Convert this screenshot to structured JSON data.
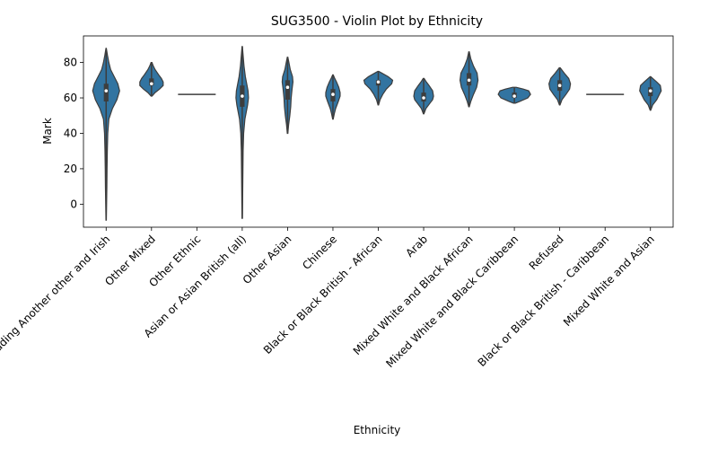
{
  "chart_data": {
    "type": "violin",
    "title": "SUG3500 - Violin Plot by Ethnicity",
    "xlabel": "Ethnicity",
    "ylabel": "Mark",
    "ylim": [
      -13,
      95
    ],
    "yticks": [
      0,
      20,
      40,
      60,
      80
    ],
    "grid": false,
    "color": "#3274a1",
    "categories": [
      "White including Another other and Irish",
      "Other Mixed",
      "Other Ethnic",
      "Asian or Asian British (all)",
      "Other Asian",
      "Chinese",
      "Black or Black British - African",
      "Arab",
      "Mixed White and Black African",
      "Mixed White and Black Caribbean",
      "Refused",
      "Black or Black British - Caribbean",
      "Mixed White and Asian"
    ],
    "violins": [
      {
        "min": -9,
        "max": 88,
        "q1": 58,
        "median": 64,
        "q3": 68,
        "profile": [
          [
            -9,
            0.2
          ],
          [
            0,
            0.5
          ],
          [
            10,
            0.8
          ],
          [
            20,
            1.0
          ],
          [
            30,
            1.3
          ],
          [
            40,
            1.8
          ],
          [
            48,
            3
          ],
          [
            54,
            7
          ],
          [
            59,
            12
          ],
          [
            64,
            15
          ],
          [
            68,
            13
          ],
          [
            72,
            9
          ],
          [
            76,
            5
          ],
          [
            80,
            3
          ],
          [
            84,
            1.5
          ],
          [
            88,
            0.2
          ]
        ]
      },
      {
        "min": 61,
        "max": 80,
        "q1": 67,
        "median": 68,
        "q3": 71,
        "profile": [
          [
            61,
            0.5
          ],
          [
            63,
            4
          ],
          [
            65,
            9
          ],
          [
            67,
            13
          ],
          [
            69,
            13
          ],
          [
            71,
            11
          ],
          [
            73,
            8
          ],
          [
            76,
            4
          ],
          [
            78,
            2
          ],
          [
            80,
            0.5
          ]
        ]
      },
      {
        "min": 62,
        "max": 62,
        "q1": 62,
        "median": 62,
        "q3": 62,
        "profile": [
          [
            62,
            21
          ]
        ]
      },
      {
        "min": -8,
        "max": 89,
        "q1": 55,
        "median": 61,
        "q3": 67,
        "profile": [
          [
            -8,
            0.2
          ],
          [
            0,
            0.4
          ],
          [
            10,
            0.6
          ],
          [
            20,
            0.8
          ],
          [
            30,
            1.0
          ],
          [
            40,
            1.6
          ],
          [
            48,
            3
          ],
          [
            52,
            4.5
          ],
          [
            56,
            6
          ],
          [
            60,
            7
          ],
          [
            64,
            6.5
          ],
          [
            68,
            5
          ],
          [
            72,
            3.5
          ],
          [
            78,
            2
          ],
          [
            84,
            1
          ],
          [
            89,
            0.2
          ]
        ]
      },
      {
        "min": 40,
        "max": 83,
        "q1": 59,
        "median": 66,
        "q3": 70,
        "profile": [
          [
            40,
            0.3
          ],
          [
            45,
            1.2
          ],
          [
            50,
            2.5
          ],
          [
            55,
            3.5
          ],
          [
            60,
            4
          ],
          [
            65,
            5
          ],
          [
            69,
            6
          ],
          [
            72,
            5.5
          ],
          [
            76,
            3
          ],
          [
            80,
            1.5
          ],
          [
            83,
            0.3
          ]
        ]
      },
      {
        "min": 48,
        "max": 73,
        "q1": 58,
        "median": 62,
        "q3": 65,
        "profile": [
          [
            48,
            0.3
          ],
          [
            51,
            1.5
          ],
          [
            54,
            3
          ],
          [
            58,
            6
          ],
          [
            61,
            8
          ],
          [
            63,
            8
          ],
          [
            66,
            6.5
          ],
          [
            69,
            4
          ],
          [
            71,
            2
          ],
          [
            73,
            0.3
          ]
        ]
      },
      {
        "min": 56,
        "max": 75,
        "q1": 67,
        "median": 69,
        "q3": 70,
        "profile": [
          [
            56,
            0.3
          ],
          [
            59,
            2
          ],
          [
            62,
            5
          ],
          [
            65,
            9
          ],
          [
            68,
            15
          ],
          [
            70,
            16
          ],
          [
            72,
            11
          ],
          [
            74,
            4
          ],
          [
            75,
            0.5
          ]
        ]
      },
      {
        "min": 51,
        "max": 71,
        "q1": 58,
        "median": 60,
        "q3": 63,
        "profile": [
          [
            51,
            0.3
          ],
          [
            54,
            2.5
          ],
          [
            57,
            7
          ],
          [
            59,
            10
          ],
          [
            61,
            11
          ],
          [
            64,
            10
          ],
          [
            67,
            6
          ],
          [
            69,
            3
          ],
          [
            71,
            0.5
          ]
        ]
      },
      {
        "min": 55,
        "max": 86,
        "q1": 67,
        "median": 70,
        "q3": 74,
        "profile": [
          [
            55,
            0.3
          ],
          [
            58,
            2
          ],
          [
            62,
            5
          ],
          [
            66,
            8.5
          ],
          [
            70,
            10
          ],
          [
            74,
            9
          ],
          [
            78,
            5
          ],
          [
            82,
            2
          ],
          [
            86,
            0.3
          ]
        ]
      },
      {
        "min": 57,
        "max": 66,
        "q1": 60,
        "median": 61,
        "q3": 63,
        "profile": [
          [
            57,
            1
          ],
          [
            58,
            6
          ],
          [
            60,
            15
          ],
          [
            62,
            18
          ],
          [
            64,
            16
          ],
          [
            65,
            10
          ],
          [
            66,
            2
          ]
        ]
      },
      {
        "min": 56,
        "max": 77,
        "q1": 64,
        "median": 67,
        "q3": 70,
        "profile": [
          [
            56,
            0.3
          ],
          [
            59,
            2.5
          ],
          [
            62,
            7
          ],
          [
            65,
            11
          ],
          [
            68,
            12
          ],
          [
            71,
            10
          ],
          [
            74,
            5
          ],
          [
            77,
            0.5
          ]
        ]
      },
      {
        "min": 62,
        "max": 62,
        "q1": 62,
        "median": 62,
        "q3": 62,
        "profile": [
          [
            62,
            21
          ]
        ]
      },
      {
        "min": 53,
        "max": 72,
        "q1": 61,
        "median": 64,
        "q3": 66,
        "profile": [
          [
            53,
            0.3
          ],
          [
            56,
            2.5
          ],
          [
            59,
            7
          ],
          [
            62,
            10
          ],
          [
            64,
            12
          ],
          [
            67,
            11
          ],
          [
            69,
            7
          ],
          [
            71,
            2.5
          ],
          [
            72,
            0.3
          ]
        ]
      }
    ]
  }
}
